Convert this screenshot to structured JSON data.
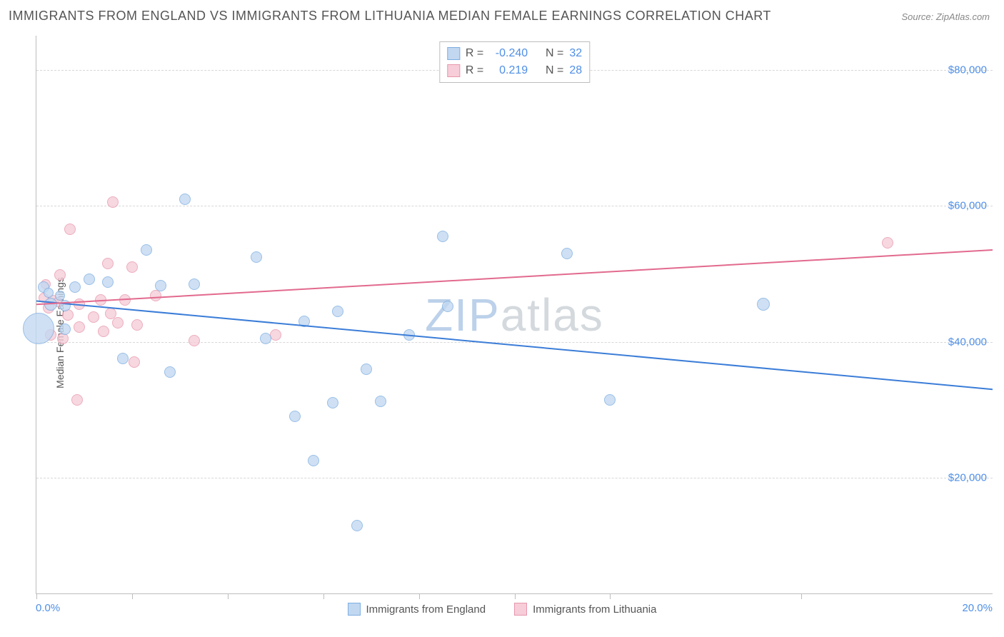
{
  "title": "IMMIGRANTS FROM ENGLAND VS IMMIGRANTS FROM LITHUANIA MEDIAN FEMALE EARNINGS CORRELATION CHART",
  "source": "Source: ZipAtlas.com",
  "ylabel": "Median Female Earnings",
  "watermark_text": "ZIPatlas",
  "watermark_color_a": "#bcd1ea",
  "watermark_color_b": "#d4d9de",
  "axis": {
    "xmin": 0.0,
    "xmax": 20.0,
    "ymin": 3000,
    "ymax": 85000,
    "xlabel_min": "0.0%",
    "xlabel_max": "20.0%",
    "yticks": [
      20000,
      40000,
      60000,
      80000
    ],
    "ytick_labels": [
      "$20,000",
      "$40,000",
      "$60,000",
      "$80,000"
    ],
    "xticks": [
      0,
      2,
      4,
      6,
      8,
      10,
      12,
      16
    ],
    "tick_label_color": "#4f8fe6",
    "grid_color": "#d7d7d7",
    "axis_color": "#bdbdbd"
  },
  "series": {
    "england": {
      "label": "Immigrants from England",
      "fill": "#c2d8f1",
      "stroke": "#7daee1",
      "line_color": "#3b7dd8",
      "line_width": 2,
      "R": "-0.240",
      "N": "32",
      "trend": {
        "y_at_xmin": 46000,
        "y_at_xmax": 33000
      },
      "points": [
        {
          "x": 0.05,
          "y": 42000,
          "r": 22
        },
        {
          "x": 0.15,
          "y": 48000,
          "r": 8
        },
        {
          "x": 0.25,
          "y": 47200,
          "r": 7
        },
        {
          "x": 0.3,
          "y": 45500,
          "r": 9
        },
        {
          "x": 0.5,
          "y": 46800,
          "r": 7
        },
        {
          "x": 0.6,
          "y": 41800,
          "r": 8
        },
        {
          "x": 0.6,
          "y": 45300,
          "r": 8
        },
        {
          "x": 0.8,
          "y": 48000,
          "r": 8
        },
        {
          "x": 1.1,
          "y": 49200,
          "r": 8
        },
        {
          "x": 1.5,
          "y": 48800,
          "r": 8
        },
        {
          "x": 1.8,
          "y": 37500,
          "r": 8
        },
        {
          "x": 2.3,
          "y": 53500,
          "r": 8
        },
        {
          "x": 2.6,
          "y": 48200,
          "r": 8
        },
        {
          "x": 2.8,
          "y": 35500,
          "r": 8
        },
        {
          "x": 3.1,
          "y": 61000,
          "r": 8
        },
        {
          "x": 3.3,
          "y": 48500,
          "r": 8
        },
        {
          "x": 4.6,
          "y": 52500,
          "r": 8
        },
        {
          "x": 4.8,
          "y": 40500,
          "r": 8
        },
        {
          "x": 5.4,
          "y": 29000,
          "r": 8
        },
        {
          "x": 5.6,
          "y": 43000,
          "r": 8
        },
        {
          "x": 5.8,
          "y": 22500,
          "r": 8
        },
        {
          "x": 6.2,
          "y": 31000,
          "r": 8
        },
        {
          "x": 6.3,
          "y": 44500,
          "r": 8
        },
        {
          "x": 6.7,
          "y": 13000,
          "r": 8
        },
        {
          "x": 6.9,
          "y": 36000,
          "r": 8
        },
        {
          "x": 7.2,
          "y": 31200,
          "r": 8
        },
        {
          "x": 7.8,
          "y": 41000,
          "r": 8
        },
        {
          "x": 8.5,
          "y": 55500,
          "r": 8
        },
        {
          "x": 8.6,
          "y": 45200,
          "r": 8
        },
        {
          "x": 11.1,
          "y": 53000,
          "r": 8
        },
        {
          "x": 12.0,
          "y": 31500,
          "r": 8
        },
        {
          "x": 15.2,
          "y": 45500,
          "r": 9
        }
      ]
    },
    "lithuania": {
      "label": "Immigrants from Lithuania",
      "fill": "#f6cdd8",
      "stroke": "#e797ad",
      "line_color": "#e26a8e",
      "line_width": 2,
      "R": "0.219",
      "N": "28",
      "trend": {
        "y_at_xmin": 45500,
        "y_at_xmax": 53500
      },
      "points": [
        {
          "x": 0.15,
          "y": 46500,
          "r": 7
        },
        {
          "x": 0.2,
          "y": 48500,
          "r": 7
        },
        {
          "x": 0.25,
          "y": 45000,
          "r": 8
        },
        {
          "x": 0.3,
          "y": 41000,
          "r": 8
        },
        {
          "x": 0.35,
          "y": 46200,
          "r": 7
        },
        {
          "x": 0.45,
          "y": 45800,
          "r": 7
        },
        {
          "x": 0.5,
          "y": 49800,
          "r": 8
        },
        {
          "x": 0.55,
          "y": 40500,
          "r": 8
        },
        {
          "x": 0.65,
          "y": 44000,
          "r": 8
        },
        {
          "x": 0.7,
          "y": 56500,
          "r": 8
        },
        {
          "x": 0.85,
          "y": 31500,
          "r": 8
        },
        {
          "x": 0.9,
          "y": 45500,
          "r": 8
        },
        {
          "x": 0.9,
          "y": 42200,
          "r": 8
        },
        {
          "x": 1.2,
          "y": 43600,
          "r": 8
        },
        {
          "x": 1.35,
          "y": 46200,
          "r": 8
        },
        {
          "x": 1.4,
          "y": 41500,
          "r": 8
        },
        {
          "x": 1.5,
          "y": 51500,
          "r": 8
        },
        {
          "x": 1.55,
          "y": 44200,
          "r": 8
        },
        {
          "x": 1.6,
          "y": 60500,
          "r": 8
        },
        {
          "x": 1.7,
          "y": 42800,
          "r": 8
        },
        {
          "x": 1.85,
          "y": 46200,
          "r": 8
        },
        {
          "x": 2.0,
          "y": 51000,
          "r": 8
        },
        {
          "x": 2.05,
          "y": 37000,
          "r": 8
        },
        {
          "x": 2.1,
          "y": 42500,
          "r": 8
        },
        {
          "x": 2.5,
          "y": 46800,
          "r": 8
        },
        {
          "x": 3.3,
          "y": 40200,
          "r": 8
        },
        {
          "x": 5.0,
          "y": 41000,
          "r": 8
        },
        {
          "x": 17.8,
          "y": 54500,
          "r": 8
        }
      ]
    }
  },
  "legend_box": {
    "R_label": "R =",
    "N_label": "N ="
  }
}
